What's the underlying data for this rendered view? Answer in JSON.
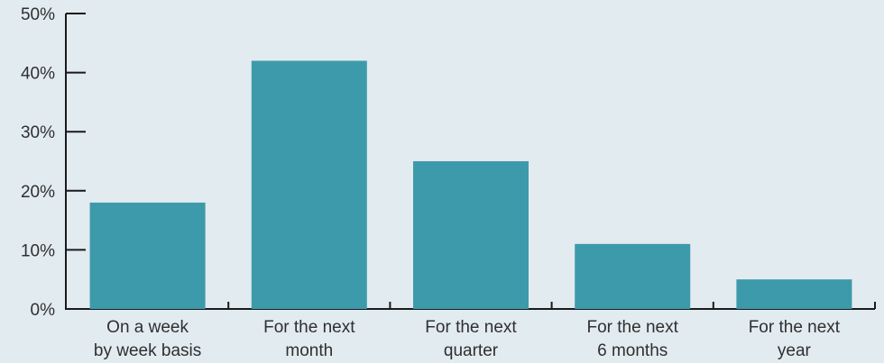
{
  "chart_data": {
    "type": "bar",
    "categories": [
      [
        "On a week",
        "by week basis"
      ],
      [
        "For the next",
        "month"
      ],
      [
        "For the next",
        "quarter"
      ],
      [
        "For the next",
        "6 months"
      ],
      [
        "For the next",
        "year"
      ]
    ],
    "values": [
      18,
      42,
      25,
      11,
      5
    ],
    "unit": "%",
    "ylim": [
      0,
      50
    ],
    "yticks": [
      0,
      10,
      20,
      30,
      40,
      50
    ],
    "ytick_labels": [
      "0%",
      "10%",
      "20%",
      "30%",
      "40%",
      "50%"
    ],
    "title": "",
    "xlabel": "",
    "ylabel": "",
    "grid": false,
    "colors": {
      "bar": "#3d9aab",
      "axis": "#1a1a1a",
      "text": "#2f2f2f",
      "background": "#e2ebf0"
    }
  }
}
